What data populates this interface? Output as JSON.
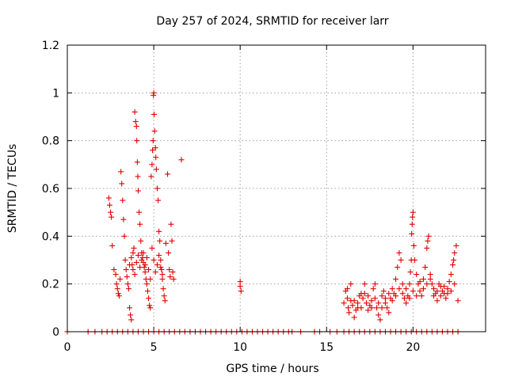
{
  "chart_data": {
    "type": "scatter",
    "title": "Day 257 of 2024, SRMTID for receiver larr",
    "xlabel": "GPS time / hours",
    "ylabel": "SRMTID / TECUs",
    "xlim": [
      0,
      24.2
    ],
    "ylim": [
      0,
      1.2
    ],
    "xticks": [
      0,
      5,
      10,
      15,
      20
    ],
    "yticks": [
      0,
      0.2,
      0.4,
      0.6,
      0.8,
      1,
      1.2
    ],
    "xtick_labels": [
      "0",
      "5",
      "10",
      "15",
      "20"
    ],
    "ytick_labels": [
      "0",
      "0.2",
      "0.4",
      "0.6",
      "0.8",
      "1",
      "1.2"
    ],
    "grid": true,
    "marker": "+",
    "color": "#e00000",
    "series": [
      {
        "name": "SRMTID",
        "points": [
          [
            0.0,
            0
          ],
          [
            1.2,
            0
          ],
          [
            1.6,
            0
          ],
          [
            2.0,
            0
          ],
          [
            2.3,
            0
          ],
          [
            2.6,
            0
          ],
          [
            2.9,
            0
          ],
          [
            3.2,
            0
          ],
          [
            3.5,
            0
          ],
          [
            3.8,
            0
          ],
          [
            4.1,
            0
          ],
          [
            4.4,
            0
          ],
          [
            4.7,
            0
          ],
          [
            5.0,
            0
          ],
          [
            5.3,
            0
          ],
          [
            5.6,
            0
          ],
          [
            5.9,
            0
          ],
          [
            6.2,
            0
          ],
          [
            6.5,
            0
          ],
          [
            6.8,
            0
          ],
          [
            7.1,
            0
          ],
          [
            7.4,
            0
          ],
          [
            7.7,
            0
          ],
          [
            8.0,
            0
          ],
          [
            8.3,
            0
          ],
          [
            8.6,
            0
          ],
          [
            8.9,
            0
          ],
          [
            9.2,
            0
          ],
          [
            9.5,
            0
          ],
          [
            9.8,
            0
          ],
          [
            10.1,
            0
          ],
          [
            10.4,
            0
          ],
          [
            10.7,
            0
          ],
          [
            11.0,
            0
          ],
          [
            11.3,
            0
          ],
          [
            11.6,
            0
          ],
          [
            11.9,
            0
          ],
          [
            12.2,
            0
          ],
          [
            12.5,
            0
          ],
          [
            12.8,
            0
          ],
          [
            13.0,
            0
          ],
          [
            13.5,
            0
          ],
          [
            14.3,
            0
          ],
          [
            14.6,
            0
          ],
          [
            15.2,
            0
          ],
          [
            15.6,
            0
          ],
          [
            16.0,
            0
          ],
          [
            16.3,
            0
          ],
          [
            16.6,
            0
          ],
          [
            16.9,
            0
          ],
          [
            17.2,
            0
          ],
          [
            17.5,
            0
          ],
          [
            17.8,
            0
          ],
          [
            18.1,
            0
          ],
          [
            18.4,
            0
          ],
          [
            18.7,
            0
          ],
          [
            19.0,
            0
          ],
          [
            19.3,
            0
          ],
          [
            19.6,
            0
          ],
          [
            19.9,
            0
          ],
          [
            20.2,
            0
          ],
          [
            20.5,
            0
          ],
          [
            20.8,
            0
          ],
          [
            21.1,
            0
          ],
          [
            21.4,
            0
          ],
          [
            21.7,
            0
          ],
          [
            22.0,
            0
          ],
          [
            22.3,
            0
          ],
          [
            22.6,
            0
          ],
          [
            2.4,
            0.56
          ],
          [
            2.45,
            0.53
          ],
          [
            2.5,
            0.5
          ],
          [
            2.55,
            0.48
          ],
          [
            2.6,
            0.36
          ],
          [
            2.7,
            0.26
          ],
          [
            2.8,
            0.24
          ],
          [
            2.85,
            0.2
          ],
          [
            2.9,
            0.18
          ],
          [
            2.95,
            0.16
          ],
          [
            3.0,
            0.15
          ],
          [
            3.05,
            0.22
          ],
          [
            3.1,
            0.67
          ],
          [
            3.15,
            0.62
          ],
          [
            3.2,
            0.55
          ],
          [
            3.25,
            0.47
          ],
          [
            3.3,
            0.4
          ],
          [
            3.35,
            0.3
          ],
          [
            3.4,
            0.26
          ],
          [
            3.45,
            0.23
          ],
          [
            3.5,
            0.2
          ],
          [
            3.55,
            0.18
          ],
          [
            3.6,
            0.1
          ],
          [
            3.65,
            0.07
          ],
          [
            3.7,
            0.05
          ],
          [
            3.75,
            0.28
          ],
          [
            3.8,
            0.33
          ],
          [
            3.85,
            0.35
          ],
          [
            3.9,
            0.92
          ],
          [
            3.95,
            0.88
          ],
          [
            4.0,
            0.86
          ],
          [
            4.02,
            0.8
          ],
          [
            4.05,
            0.71
          ],
          [
            4.08,
            0.65
          ],
          [
            4.1,
            0.59
          ],
          [
            4.15,
            0.5
          ],
          [
            4.2,
            0.45
          ],
          [
            4.25,
            0.38
          ],
          [
            4.3,
            0.33
          ],
          [
            4.35,
            0.31
          ],
          [
            4.4,
            0.29
          ],
          [
            4.45,
            0.27
          ],
          [
            4.5,
            0.25
          ],
          [
            4.55,
            0.22
          ],
          [
            4.6,
            0.2
          ],
          [
            4.65,
            0.17
          ],
          [
            4.7,
            0.14
          ],
          [
            4.75,
            0.11
          ],
          [
            4.8,
            0.1
          ],
          [
            4.85,
            0.65
          ],
          [
            4.9,
            0.7
          ],
          [
            4.93,
            0.76
          ],
          [
            4.96,
            0.8
          ],
          [
            4.98,
            0.99
          ],
          [
            5.0,
            1.0
          ],
          [
            5.02,
            0.91
          ],
          [
            5.05,
            0.84
          ],
          [
            5.1,
            0.77
          ],
          [
            5.12,
            0.73
          ],
          [
            5.15,
            0.68
          ],
          [
            5.2,
            0.6
          ],
          [
            5.25,
            0.55
          ],
          [
            5.3,
            0.42
          ],
          [
            5.35,
            0.38
          ],
          [
            5.4,
            0.3
          ],
          [
            5.45,
            0.26
          ],
          [
            5.5,
            0.22
          ],
          [
            5.55,
            0.18
          ],
          [
            5.6,
            0.15
          ],
          [
            5.65,
            0.13
          ],
          [
            5.7,
            0.37
          ],
          [
            5.8,
            0.66
          ],
          [
            5.85,
            0.33
          ],
          [
            5.9,
            0.26
          ],
          [
            5.95,
            0.23
          ],
          [
            6.0,
            0.45
          ],
          [
            6.05,
            0.38
          ],
          [
            6.1,
            0.25
          ],
          [
            6.15,
            0.22
          ],
          [
            6.6,
            0.72
          ],
          [
            3.6,
            0.28
          ],
          [
            3.7,
            0.31
          ],
          [
            3.8,
            0.26
          ],
          [
            3.9,
            0.24
          ],
          [
            4.0,
            0.29
          ],
          [
            4.1,
            0.32
          ],
          [
            4.2,
            0.27
          ],
          [
            4.3,
            0.3
          ],
          [
            4.4,
            0.33
          ],
          [
            4.5,
            0.28
          ],
          [
            4.6,
            0.31
          ],
          [
            4.7,
            0.26
          ],
          [
            4.8,
            0.22
          ],
          [
            4.9,
            0.35
          ],
          [
            5.0,
            0.3
          ],
          [
            5.1,
            0.25
          ],
          [
            5.2,
            0.28
          ],
          [
            5.3,
            0.32
          ],
          [
            5.4,
            0.27
          ],
          [
            5.5,
            0.24
          ],
          [
            10.0,
            0.21
          ],
          [
            10.0,
            0.19
          ],
          [
            10.05,
            0.17
          ],
          [
            16.0,
            0.12
          ],
          [
            16.1,
            0.17
          ],
          [
            16.2,
            0.14
          ],
          [
            16.25,
            0.1
          ],
          [
            16.3,
            0.08
          ],
          [
            16.4,
            0.13
          ],
          [
            16.5,
            0.11
          ],
          [
            16.6,
            0.06
          ],
          [
            16.7,
            0.09
          ],
          [
            16.8,
            0.12
          ],
          [
            16.9,
            0.15
          ],
          [
            17.0,
            0.1
          ],
          [
            17.1,
            0.14
          ],
          [
            17.2,
            0.16
          ],
          [
            17.3,
            0.12
          ],
          [
            17.4,
            0.09
          ],
          [
            17.5,
            0.11
          ],
          [
            17.6,
            0.13
          ],
          [
            17.7,
            0.18
          ],
          [
            17.8,
            0.2
          ],
          [
            17.9,
            0.1
          ],
          [
            18.0,
            0.07
          ],
          [
            18.1,
            0.05
          ],
          [
            18.2,
            0.15
          ],
          [
            18.3,
            0.17
          ],
          [
            18.4,
            0.12
          ],
          [
            18.5,
            0.1
          ],
          [
            18.6,
            0.08
          ],
          [
            18.7,
            0.14
          ],
          [
            18.8,
            0.18
          ],
          [
            18.9,
            0.16
          ],
          [
            19.0,
            0.22
          ],
          [
            19.1,
            0.27
          ],
          [
            19.2,
            0.33
          ],
          [
            19.3,
            0.3
          ],
          [
            19.4,
            0.2
          ],
          [
            19.5,
            0.14
          ],
          [
            19.6,
            0.12
          ],
          [
            19.7,
            0.15
          ],
          [
            19.8,
            0.2
          ],
          [
            19.85,
            0.25
          ],
          [
            19.9,
            0.3
          ],
          [
            19.92,
            0.41
          ],
          [
            19.95,
            0.45
          ],
          [
            19.97,
            0.48
          ],
          [
            20.0,
            0.5
          ],
          [
            20.05,
            0.36
          ],
          [
            20.1,
            0.3
          ],
          [
            20.2,
            0.24
          ],
          [
            20.3,
            0.2
          ],
          [
            20.4,
            0.17
          ],
          [
            20.5,
            0.15
          ],
          [
            20.6,
            0.22
          ],
          [
            20.7,
            0.27
          ],
          [
            20.8,
            0.35
          ],
          [
            20.85,
            0.38
          ],
          [
            20.9,
            0.4
          ],
          [
            21.0,
            0.24
          ],
          [
            21.1,
            0.2
          ],
          [
            21.2,
            0.18
          ],
          [
            21.3,
            0.16
          ],
          [
            21.4,
            0.13
          ],
          [
            21.5,
            0.2
          ],
          [
            21.6,
            0.15
          ],
          [
            21.7,
            0.17
          ],
          [
            21.8,
            0.19
          ],
          [
            21.9,
            0.14
          ],
          [
            22.0,
            0.16
          ],
          [
            22.1,
            0.21
          ],
          [
            22.2,
            0.24
          ],
          [
            22.3,
            0.28
          ],
          [
            22.35,
            0.3
          ],
          [
            22.4,
            0.33
          ],
          [
            22.5,
            0.36
          ],
          [
            22.6,
            0.13
          ],
          [
            16.2,
            0.18
          ],
          [
            16.4,
            0.2
          ],
          [
            16.6,
            0.13
          ],
          [
            16.8,
            0.1
          ],
          [
            17.0,
            0.16
          ],
          [
            17.2,
            0.2
          ],
          [
            17.4,
            0.15
          ],
          [
            17.6,
            0.1
          ],
          [
            17.8,
            0.14
          ],
          [
            18.0,
            0.12
          ],
          [
            18.2,
            0.1
          ],
          [
            18.4,
            0.14
          ],
          [
            18.6,
            0.16
          ],
          [
            18.8,
            0.13
          ],
          [
            19.0,
            0.15
          ],
          [
            19.2,
            0.18
          ],
          [
            19.4,
            0.16
          ],
          [
            19.6,
            0.18
          ],
          [
            19.8,
            0.14
          ],
          [
            20.0,
            0.17
          ],
          [
            20.2,
            0.15
          ],
          [
            20.4,
            0.21
          ],
          [
            20.6,
            0.18
          ],
          [
            20.8,
            0.2
          ],
          [
            21.0,
            0.22
          ],
          [
            21.2,
            0.15
          ],
          [
            21.4,
            0.17
          ],
          [
            21.6,
            0.19
          ],
          [
            21.8,
            0.16
          ],
          [
            22.0,
            0.18
          ],
          [
            22.2,
            0.17
          ],
          [
            22.4,
            0.2
          ]
        ]
      }
    ]
  }
}
